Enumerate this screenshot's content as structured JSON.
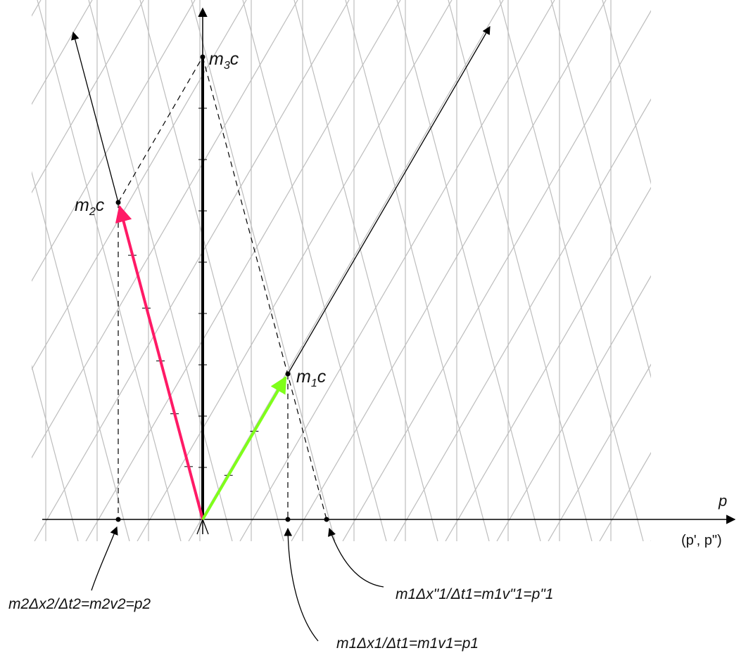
{
  "diagram": {
    "axis_p_label": "p",
    "axis_p_alt_label": "(p', p\")",
    "points": {
      "m3c": {
        "main": "m",
        "sub": "3",
        "tail": "c"
      },
      "m2c": {
        "main": "m",
        "sub": "2",
        "tail": "c"
      },
      "m1c": {
        "main": "m",
        "sub": "1",
        "tail": "c"
      }
    },
    "annotations": {
      "p2": "m2Δx2/Δt2=m2v2=p2",
      "p1_double_prime": "m1Δx\"1/Δt1=m1v\"1=p\"1",
      "p1": "m1Δx1/Δt1=m1v1=p1"
    },
    "colors": {
      "m2_vector": "#ff1a66",
      "m1_vector": "#7fff1a",
      "m3_vector": "#000000",
      "grid": "#bdbdbd",
      "axes": "#000000"
    }
  }
}
